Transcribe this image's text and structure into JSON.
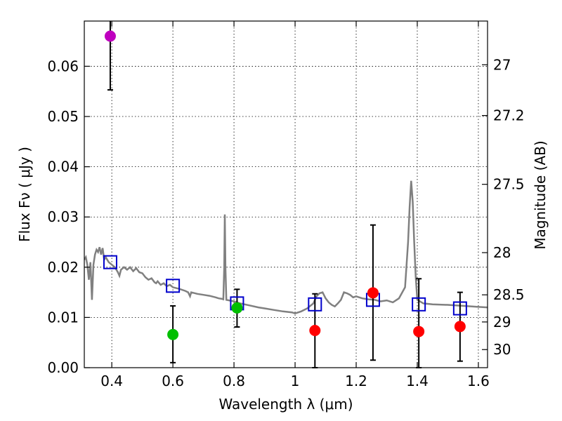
{
  "chart_data": {
    "type": "scatter",
    "title": "",
    "xlabel": "Wavelength  λ (μm)",
    "ylabel": "Flux  Fν  ( μJy )",
    "y2label": "Magnitude (AB)",
    "xlim": [
      0.31,
      1.63
    ],
    "ylim": [
      0.0,
      0.069
    ],
    "xticks": [
      0.4,
      0.6,
      0.8,
      1.0,
      1.2,
      1.4,
      1.6
    ],
    "xtick_labels": [
      "0.4",
      "0.6",
      "0.8",
      "1",
      "1.2",
      "1.4",
      "1.6"
    ],
    "yticks": [
      0.0,
      0.01,
      0.02,
      0.03,
      0.04,
      0.05,
      0.06
    ],
    "ytick_labels": [
      "0.00",
      "0.01",
      "0.02",
      "0.03",
      "0.04",
      "0.05",
      "0.06"
    ],
    "y2ticks": [
      {
        "label": "27",
        "flux": 0.0603
      },
      {
        "label": "27.2",
        "flux": 0.0502
      },
      {
        "label": "27.5",
        "flux": 0.0365
      },
      {
        "label": "28",
        "flux": 0.0229
      },
      {
        "label": "28.5",
        "flux": 0.0145
      },
      {
        "label": "29",
        "flux": 0.0091
      },
      {
        "label": "30",
        "flux": 0.0036
      }
    ],
    "grid": true,
    "colors": {
      "model": "#808080",
      "model_phot": "#0000cc",
      "errorbar": "#000000"
    },
    "model_spectrum": [
      [
        0.31,
        0.0215
      ],
      [
        0.315,
        0.022
      ],
      [
        0.32,
        0.0205
      ],
      [
        0.325,
        0.0175
      ],
      [
        0.33,
        0.021
      ],
      [
        0.335,
        0.0135
      ],
      [
        0.34,
        0.0205
      ],
      [
        0.345,
        0.0225
      ],
      [
        0.35,
        0.0235
      ],
      [
        0.355,
        0.023
      ],
      [
        0.36,
        0.024
      ],
      [
        0.365,
        0.0225
      ],
      [
        0.37,
        0.0238
      ],
      [
        0.375,
        0.0215
      ],
      [
        0.38,
        0.022
      ],
      [
        0.39,
        0.021
      ],
      [
        0.4,
        0.0205
      ],
      [
        0.41,
        0.02
      ],
      [
        0.42,
        0.019
      ],
      [
        0.425,
        0.0183
      ],
      [
        0.43,
        0.0195
      ],
      [
        0.44,
        0.02
      ],
      [
        0.45,
        0.0195
      ],
      [
        0.46,
        0.02
      ],
      [
        0.47,
        0.0192
      ],
      [
        0.48,
        0.0198
      ],
      [
        0.49,
        0.019
      ],
      [
        0.5,
        0.0188
      ],
      [
        0.51,
        0.018
      ],
      [
        0.52,
        0.0175
      ],
      [
        0.53,
        0.0178
      ],
      [
        0.54,
        0.017
      ],
      [
        0.545,
        0.0168
      ],
      [
        0.55,
        0.0172
      ],
      [
        0.56,
        0.0165
      ],
      [
        0.57,
        0.0168
      ],
      [
        0.58,
        0.0162
      ],
      [
        0.59,
        0.0165
      ],
      [
        0.6,
        0.016
      ],
      [
        0.62,
        0.0157
      ],
      [
        0.64,
        0.0153
      ],
      [
        0.65,
        0.015
      ],
      [
        0.656,
        0.0142
      ],
      [
        0.66,
        0.015
      ],
      [
        0.68,
        0.0147
      ],
      [
        0.7,
        0.0145
      ],
      [
        0.72,
        0.0143
      ],
      [
        0.74,
        0.014
      ],
      [
        0.75,
        0.0138
      ],
      [
        0.76,
        0.0137
      ],
      [
        0.765,
        0.0136
      ],
      [
        0.768,
        0.02
      ],
      [
        0.77,
        0.0305
      ],
      [
        0.772,
        0.02
      ],
      [
        0.775,
        0.0135
      ],
      [
        0.8,
        0.0132
      ],
      [
        0.82,
        0.0128
      ],
      [
        0.85,
        0.0124
      ],
      [
        0.88,
        0.012
      ],
      [
        0.9,
        0.0118
      ],
      [
        0.93,
        0.0115
      ],
      [
        0.96,
        0.0112
      ],
      [
        0.99,
        0.011
      ],
      [
        1.0,
        0.0108
      ],
      [
        1.02,
        0.0112
      ],
      [
        1.04,
        0.0118
      ],
      [
        1.06,
        0.0128
      ],
      [
        1.07,
        0.0142
      ],
      [
        1.08,
        0.0148
      ],
      [
        1.09,
        0.015
      ],
      [
        1.1,
        0.0138
      ],
      [
        1.11,
        0.013
      ],
      [
        1.12,
        0.0125
      ],
      [
        1.13,
        0.0122
      ],
      [
        1.14,
        0.0128
      ],
      [
        1.15,
        0.0135
      ],
      [
        1.16,
        0.015
      ],
      [
        1.17,
        0.0148
      ],
      [
        1.18,
        0.0145
      ],
      [
        1.19,
        0.014
      ],
      [
        1.2,
        0.0142
      ],
      [
        1.22,
        0.0138
      ],
      [
        1.24,
        0.0136
      ],
      [
        1.26,
        0.0135
      ],
      [
        1.28,
        0.0132
      ],
      [
        1.3,
        0.0134
      ],
      [
        1.32,
        0.013
      ],
      [
        1.34,
        0.0138
      ],
      [
        1.36,
        0.016
      ],
      [
        1.37,
        0.025
      ],
      [
        1.375,
        0.032
      ],
      [
        1.38,
        0.0372
      ],
      [
        1.385,
        0.033
      ],
      [
        1.39,
        0.025
      ],
      [
        1.395,
        0.018
      ],
      [
        1.4,
        0.0135
      ],
      [
        1.42,
        0.0128
      ],
      [
        1.45,
        0.0126
      ],
      [
        1.5,
        0.0125
      ],
      [
        1.55,
        0.0123
      ],
      [
        1.6,
        0.0121
      ],
      [
        1.63,
        0.012
      ]
    ],
    "model_photometry": [
      {
        "x": 0.395,
        "y": 0.021
      },
      {
        "x": 0.6,
        "y": 0.0163
      },
      {
        "x": 0.81,
        "y": 0.0128
      },
      {
        "x": 1.065,
        "y": 0.0126
      },
      {
        "x": 1.255,
        "y": 0.0135
      },
      {
        "x": 1.405,
        "y": 0.0126
      },
      {
        "x": 1.54,
        "y": 0.0118
      }
    ],
    "observed": [
      {
        "x": 0.395,
        "y": 0.066,
        "ylo": 0.0553,
        "yhi": 0.069,
        "color": "#bf00bf"
      },
      {
        "x": 0.6,
        "y": 0.0066,
        "ylo": 0.001,
        "yhi": 0.0123,
        "color": "#00bf00"
      },
      {
        "x": 0.81,
        "y": 0.0119,
        "ylo": 0.0081,
        "yhi": 0.0156,
        "color": "#00bf00"
      },
      {
        "x": 1.065,
        "y": 0.0074,
        "ylo": 0.0,
        "yhi": 0.0147,
        "color": "#ff0000"
      },
      {
        "x": 1.255,
        "y": 0.0149,
        "ylo": 0.0015,
        "yhi": 0.0284,
        "color": "#ff0000"
      },
      {
        "x": 1.405,
        "y": 0.0072,
        "ylo": 0.0,
        "yhi": 0.0177,
        "color": "#ff0000"
      },
      {
        "x": 1.54,
        "y": 0.0082,
        "ylo": 0.0013,
        "yhi": 0.015,
        "color": "#ff0000"
      }
    ]
  }
}
